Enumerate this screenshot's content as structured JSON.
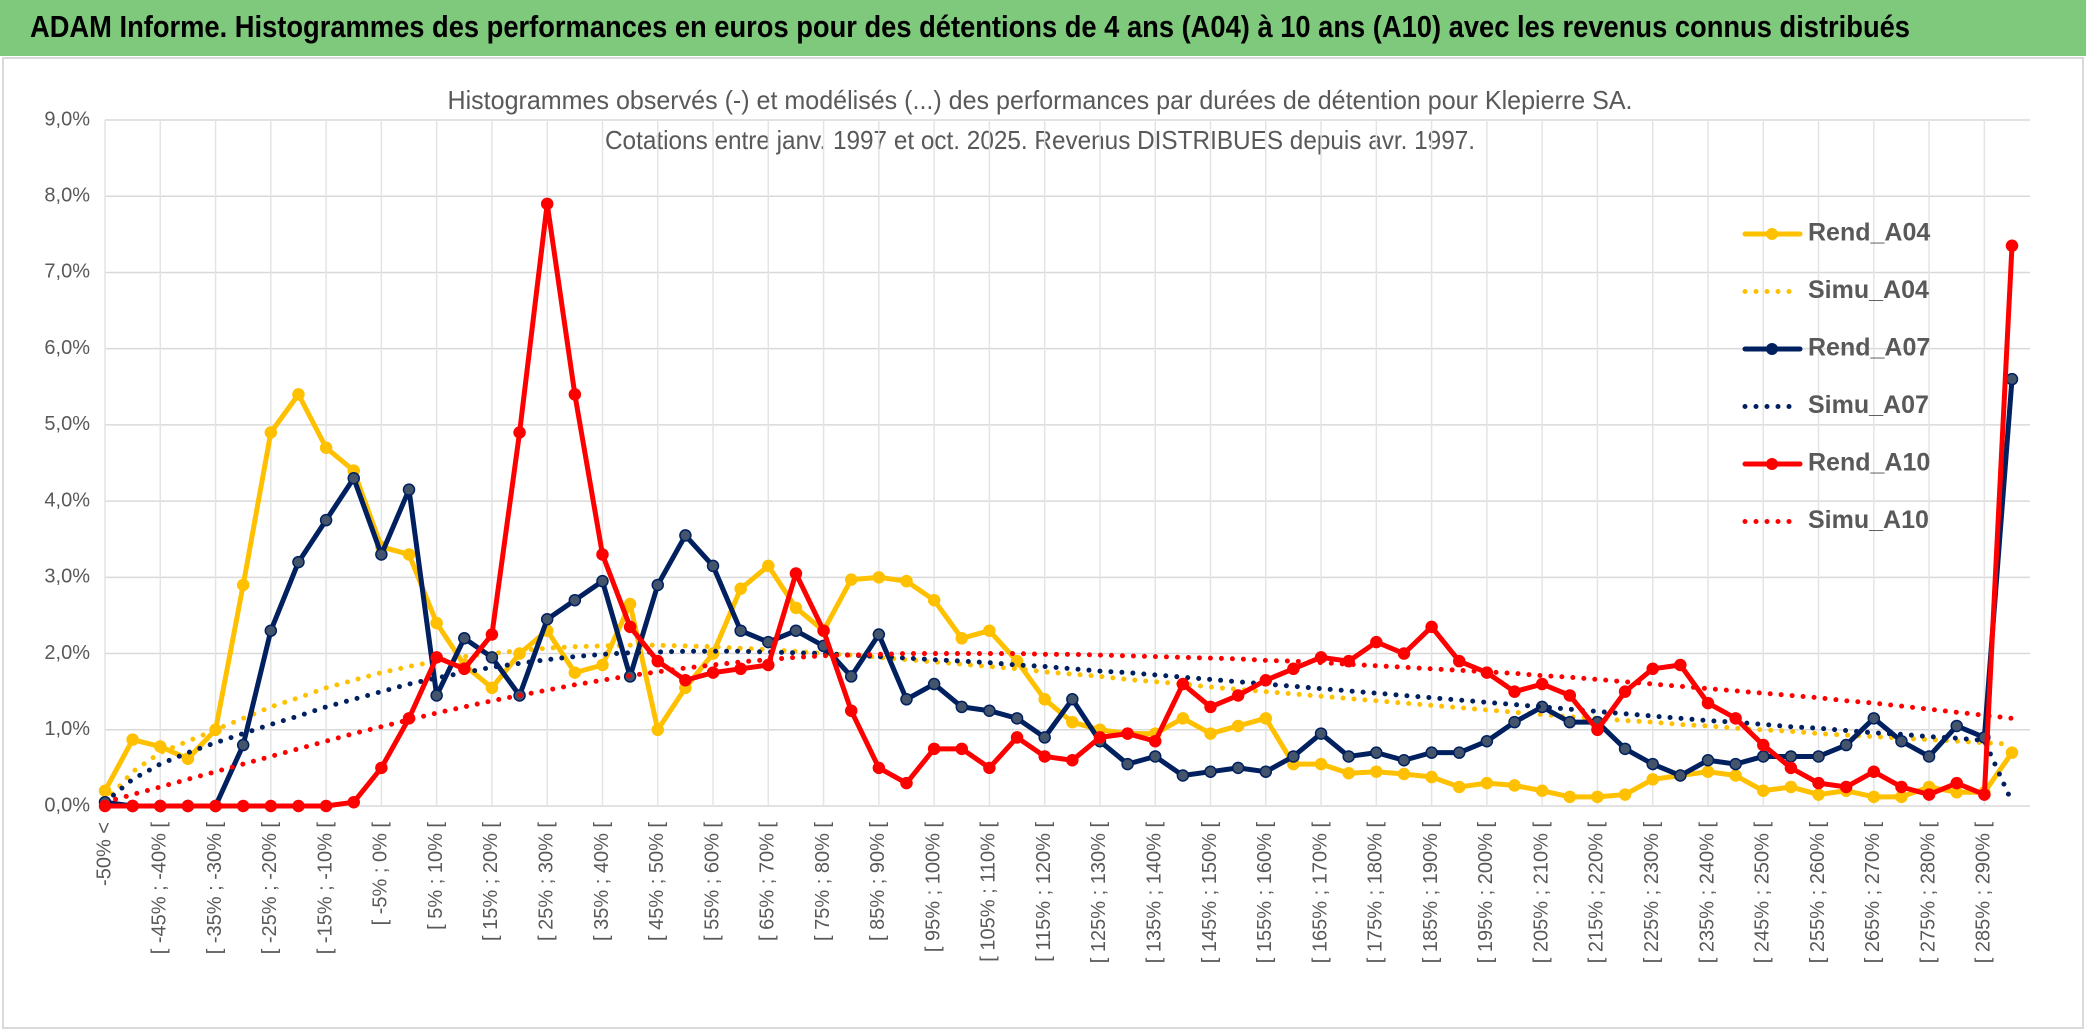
{
  "header": {
    "title": "ADAM Informe. Histogrammes des performances en euros pour des détentions de 4 ans (A04) à 10 ans (A10) avec les revenus connus distribués"
  },
  "chart_data": {
    "type": "line",
    "title": "Histogrammes observés (-) et modélisés (...) des performances par durées de détention pour Klepierre SA.",
    "subtitle": "Cotations entre janv. 1997 et oct. 2025. Revenus DISTRIBUES depuis avr. 1997.",
    "categories": [
      "-50% <",
      null,
      "[ -45% ; -40% [",
      null,
      "[ -35% ; -30% [",
      null,
      "[ -25% ; -20% [",
      null,
      "[ -15% ; -10% [",
      null,
      "[ -5% ; 0% [",
      null,
      "[ 5% ; 10% [",
      null,
      "[ 15% ; 20% [",
      null,
      "[ 25% ; 30% [",
      null,
      "[ 35% ; 40% [",
      null,
      "[ 45% ; 50% [",
      null,
      "[ 55% ; 60% [",
      null,
      "[ 65% ; 70% [",
      null,
      "[ 75% ; 80% [",
      null,
      "[ 85% ; 90% [",
      null,
      "[ 95% ; 100% [",
      null,
      "[ 105% ; 110% [",
      null,
      "[ 115% ; 120% [",
      null,
      "[ 125% ; 130% [",
      null,
      "[ 135% ; 140% [",
      null,
      "[ 145% ; 150% [",
      null,
      "[ 155% ; 160% [",
      null,
      "[ 165% ; 170% [",
      null,
      "[ 175% ; 180% [",
      null,
      "[ 185% ; 190% [",
      null,
      "[ 195% ; 200% [",
      null,
      "[ 205% ; 210% [",
      null,
      "[ 215% ; 220% [",
      null,
      "[ 225% ; 230% [",
      null,
      "[ 235% ; 240% [",
      null,
      "[ 245% ; 250% [",
      null,
      "[ 255% ; 260% [",
      null,
      "[ 265% ; 270% [",
      null,
      "[ 275% ; 280% [",
      null,
      "[ 285% ; 290% [",
      null
    ],
    "series": [
      {
        "name": "Rend_A04",
        "color": "#ffc000",
        "style": "solid",
        "markers": true,
        "values": [
          0.2,
          0.87,
          0.78,
          0.62,
          1.0,
          2.9,
          4.9,
          5.4,
          4.7,
          4.4,
          3.4,
          3.3,
          2.4,
          1.85,
          1.55,
          2.0,
          2.3,
          1.75,
          1.85,
          2.65,
          1.0,
          1.55,
          2.0,
          2.85,
          3.15,
          2.6,
          2.3,
          2.97,
          3.0,
          2.95,
          2.7,
          2.2,
          2.3,
          1.9,
          1.4,
          1.1,
          1.0,
          0.95,
          0.95,
          1.15,
          0.95,
          1.05,
          1.15,
          0.55,
          0.55,
          0.43,
          0.45,
          0.42,
          0.38,
          0.25,
          0.3,
          0.27,
          0.2,
          0.12,
          0.12,
          0.15,
          0.35,
          0.4,
          0.45,
          0.4,
          0.2,
          0.25,
          0.15,
          0.2,
          0.12,
          0.12,
          0.25,
          0.18,
          0.18,
          0.7
        ]
      },
      {
        "name": "Simu_A04",
        "color": "#ffc000",
        "style": "dotted",
        "markers": false,
        "values": [
          0.05,
          0.45,
          0.7,
          0.85,
          1.0,
          1.15,
          1.3,
          1.42,
          1.55,
          1.65,
          1.75,
          1.83,
          1.9,
          1.96,
          2.0,
          2.04,
          2.07,
          2.09,
          2.1,
          2.11,
          2.11,
          2.1,
          2.09,
          2.07,
          2.05,
          2.03,
          2.0,
          1.98,
          1.95,
          1.92,
          1.89,
          1.86,
          1.83,
          1.8,
          1.76,
          1.73,
          1.7,
          1.66,
          1.63,
          1.6,
          1.56,
          1.53,
          1.5,
          1.47,
          1.44,
          1.41,
          1.38,
          1.35,
          1.32,
          1.29,
          1.26,
          1.23,
          1.2,
          1.17,
          1.15,
          1.12,
          1.1,
          1.07,
          1.05,
          1.02,
          1.0,
          0.98,
          0.95,
          0.93,
          0.91,
          0.89,
          0.87,
          0.85,
          0.83,
          0.81
        ]
      },
      {
        "name": "Rend_A07",
        "color": "#002060",
        "style": "solid",
        "markers": true,
        "values": [
          0.05,
          0,
          0,
          0,
          0,
          0.8,
          2.3,
          3.2,
          3.75,
          4.3,
          3.3,
          4.15,
          1.45,
          2.2,
          1.95,
          1.45,
          2.45,
          2.7,
          2.95,
          1.7,
          2.9,
          3.55,
          3.15,
          2.3,
          2.15,
          2.3,
          2.1,
          1.7,
          2.25,
          1.4,
          1.6,
          1.3,
          1.25,
          1.15,
          0.9,
          1.4,
          0.85,
          0.55,
          0.65,
          0.4,
          0.45,
          0.5,
          0.45,
          0.65,
          0.95,
          0.65,
          0.7,
          0.6,
          0.7,
          0.7,
          0.85,
          1.1,
          1.3,
          1.1,
          1.1,
          0.75,
          0.55,
          0.4,
          0.6,
          0.55,
          0.65,
          0.65,
          0.65,
          0.8,
          1.15,
          0.85,
          0.65,
          1.05,
          0.9,
          5.6
        ]
      },
      {
        "name": "Simu_A07",
        "color": "#002060",
        "style": "dotted",
        "markers": false,
        "values": [
          0.05,
          0.35,
          0.55,
          0.7,
          0.83,
          0.95,
          1.07,
          1.18,
          1.3,
          1.4,
          1.5,
          1.6,
          1.68,
          1.75,
          1.82,
          1.87,
          1.92,
          1.96,
          1.99,
          2.01,
          2.02,
          2.03,
          2.03,
          2.03,
          2.02,
          2.01,
          2.0,
          1.98,
          1.96,
          1.94,
          1.92,
          1.9,
          1.88,
          1.85,
          1.83,
          1.8,
          1.77,
          1.75,
          1.72,
          1.69,
          1.66,
          1.63,
          1.6,
          1.57,
          1.54,
          1.51,
          1.48,
          1.45,
          1.42,
          1.39,
          1.36,
          1.33,
          1.3,
          1.27,
          1.24,
          1.21,
          1.18,
          1.15,
          1.12,
          1.1,
          1.07,
          1.04,
          1.02,
          0.99,
          0.96,
          0.94,
          0.91,
          0.89,
          0.86,
          0.05
        ]
      },
      {
        "name": "Rend_A10",
        "color": "#ff0000",
        "style": "solid",
        "markers": true,
        "values": [
          0,
          0,
          0,
          0,
          0,
          0,
          0,
          0,
          0,
          0.05,
          0.5,
          1.15,
          1.95,
          1.8,
          2.25,
          4.9,
          7.9,
          5.4,
          3.3,
          2.35,
          1.9,
          1.65,
          1.75,
          1.8,
          1.85,
          3.05,
          2.3,
          1.25,
          0.5,
          0.3,
          0.75,
          0.75,
          0.5,
          0.9,
          0.65,
          0.6,
          0.9,
          0.95,
          0.85,
          1.6,
          1.3,
          1.45,
          1.65,
          1.8,
          1.95,
          1.9,
          2.15,
          2.0,
          2.35,
          1.9,
          1.75,
          1.5,
          1.6,
          1.45,
          1.0,
          1.5,
          1.8,
          1.85,
          1.35,
          1.15,
          0.8,
          0.5,
          0.3,
          0.25,
          0.45,
          0.25,
          0.15,
          0.3,
          0.15,
          7.35
        ]
      },
      {
        "name": "Simu_A10",
        "color": "#ff0000",
        "style": "dotted",
        "markers": false,
        "values": [
          0.05,
          0.15,
          0.25,
          0.35,
          0.45,
          0.55,
          0.65,
          0.75,
          0.85,
          0.95,
          1.04,
          1.13,
          1.22,
          1.3,
          1.38,
          1.45,
          1.52,
          1.59,
          1.65,
          1.71,
          1.76,
          1.81,
          1.85,
          1.89,
          1.92,
          1.95,
          1.97,
          1.98,
          1.99,
          2.0,
          2.0,
          2.0,
          2.0,
          2.0,
          1.99,
          1.99,
          1.98,
          1.97,
          1.96,
          1.95,
          1.94,
          1.93,
          1.91,
          1.9,
          1.88,
          1.86,
          1.84,
          1.82,
          1.8,
          1.78,
          1.76,
          1.74,
          1.71,
          1.69,
          1.66,
          1.63,
          1.6,
          1.57,
          1.54,
          1.51,
          1.48,
          1.45,
          1.42,
          1.38,
          1.35,
          1.31,
          1.27,
          1.23,
          1.19,
          1.15
        ]
      }
    ],
    "ylim": [
      0,
      9
    ],
    "yticks": [
      {
        "value": 0,
        "label": "0,0%"
      },
      {
        "value": 1,
        "label": "1,0%"
      },
      {
        "value": 2,
        "label": "2,0%"
      },
      {
        "value": 3,
        "label": "3,0%"
      },
      {
        "value": 4,
        "label": "4,0%"
      },
      {
        "value": 5,
        "label": "5,0%"
      },
      {
        "value": 6,
        "label": "6,0%"
      },
      {
        "value": 7,
        "label": "7,0%"
      },
      {
        "value": 8,
        "label": "8,0%"
      },
      {
        "value": 9,
        "label": "9,0%"
      }
    ],
    "grid": true,
    "legend": "right"
  }
}
